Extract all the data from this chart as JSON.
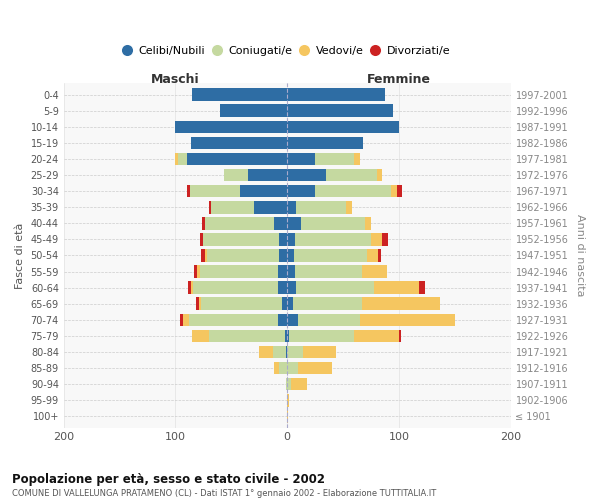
{
  "age_groups": [
    "100+",
    "95-99",
    "90-94",
    "85-89",
    "80-84",
    "75-79",
    "70-74",
    "65-69",
    "60-64",
    "55-59",
    "50-54",
    "45-49",
    "40-44",
    "35-39",
    "30-34",
    "25-29",
    "20-24",
    "15-19",
    "10-14",
    "5-9",
    "0-4"
  ],
  "birth_years": [
    "≤ 1901",
    "1902-1906",
    "1907-1911",
    "1912-1916",
    "1917-1921",
    "1922-1926",
    "1927-1931",
    "1932-1936",
    "1937-1941",
    "1942-1946",
    "1947-1951",
    "1952-1956",
    "1957-1961",
    "1962-1966",
    "1967-1971",
    "1972-1976",
    "1977-1981",
    "1982-1986",
    "1987-1991",
    "1992-1996",
    "1997-2001"
  ],
  "maschi_celibi": [
    0,
    0,
    0,
    0,
    1,
    2,
    8,
    5,
    8,
    8,
    7,
    7,
    12,
    30,
    42,
    35,
    90,
    86,
    100,
    60,
    85
  ],
  "maschi_coniugati": [
    0,
    0,
    1,
    7,
    12,
    68,
    80,
    72,
    76,
    70,
    65,
    68,
    62,
    38,
    45,
    22,
    8,
    0,
    0,
    0,
    0
  ],
  "maschi_vedovi": [
    0,
    0,
    0,
    5,
    12,
    15,
    5,
    2,
    2,
    3,
    2,
    0,
    0,
    0,
    0,
    0,
    2,
    0,
    0,
    0,
    0
  ],
  "maschi_divorziati": [
    0,
    0,
    0,
    0,
    0,
    0,
    3,
    3,
    3,
    2,
    3,
    3,
    2,
    2,
    3,
    0,
    0,
    0,
    0,
    0,
    0
  ],
  "femmine_nubili": [
    0,
    0,
    0,
    0,
    0,
    2,
    10,
    5,
    8,
    7,
    6,
    7,
    12,
    8,
    25,
    35,
    25,
    68,
    100,
    95,
    88
  ],
  "femmine_coniugate": [
    0,
    0,
    3,
    10,
    14,
    58,
    55,
    62,
    70,
    60,
    65,
    68,
    58,
    45,
    68,
    45,
    35,
    0,
    0,
    0,
    0
  ],
  "femmine_vedove": [
    1,
    2,
    15,
    30,
    30,
    40,
    85,
    70,
    40,
    22,
    10,
    10,
    5,
    5,
    5,
    5,
    5,
    0,
    0,
    0,
    0
  ],
  "femmine_divorziate": [
    0,
    0,
    0,
    0,
    0,
    2,
    0,
    0,
    5,
    0,
    3,
    5,
    0,
    0,
    5,
    0,
    0,
    0,
    0,
    0,
    0
  ],
  "color_celibi": "#2E6DA4",
  "color_coniugati": "#C5D9A0",
  "color_vedovi": "#F5C660",
  "color_divorziati": "#CC2222",
  "xlim": 200,
  "title": "Popolazione per età, sesso e stato civile - 2002",
  "subtitle": "COMUNE DI VALLELUNGA PRATAMENO (CL) - Dati ISTAT 1° gennaio 2002 - Elaborazione TUTTITALIA.IT",
  "ylabel_left": "Fasce di età",
  "ylabel_right": "Anni di nascita",
  "header_left": "Maschi",
  "header_right": "Femmine",
  "legend_labels": [
    "Celibi/Nubili",
    "Coniugati/e",
    "Vedovi/e",
    "Divorziati/e"
  ]
}
